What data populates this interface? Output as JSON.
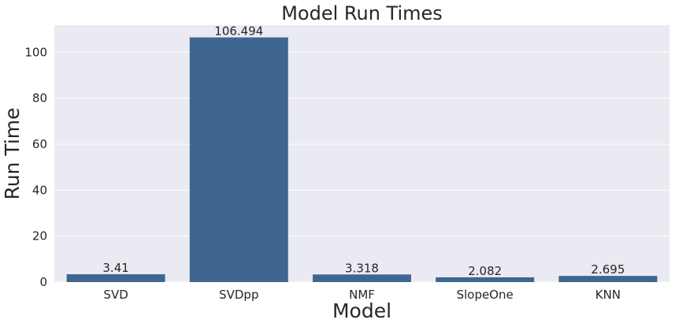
{
  "chart_data": {
    "type": "bar",
    "title": "Model Run Times",
    "xlabel": "Model",
    "ylabel": "Run Time",
    "categories": [
      "SVD",
      "SVDpp",
      "NMF",
      "SlopeOne",
      "KNN"
    ],
    "values": [
      3.41,
      106.494,
      3.318,
      2.082,
      2.695
    ],
    "data_labels": [
      "3.41",
      "106.494",
      "3.318",
      "2.082",
      "2.695"
    ],
    "yticks": [
      0,
      20,
      40,
      60,
      80,
      100
    ],
    "ylim": [
      0,
      111.8
    ],
    "grid": true,
    "legend": "none",
    "colors": {
      "bar": "#3f6690",
      "background": "#eaeaf2",
      "grid": "#ffffff",
      "text": "#262626"
    }
  }
}
